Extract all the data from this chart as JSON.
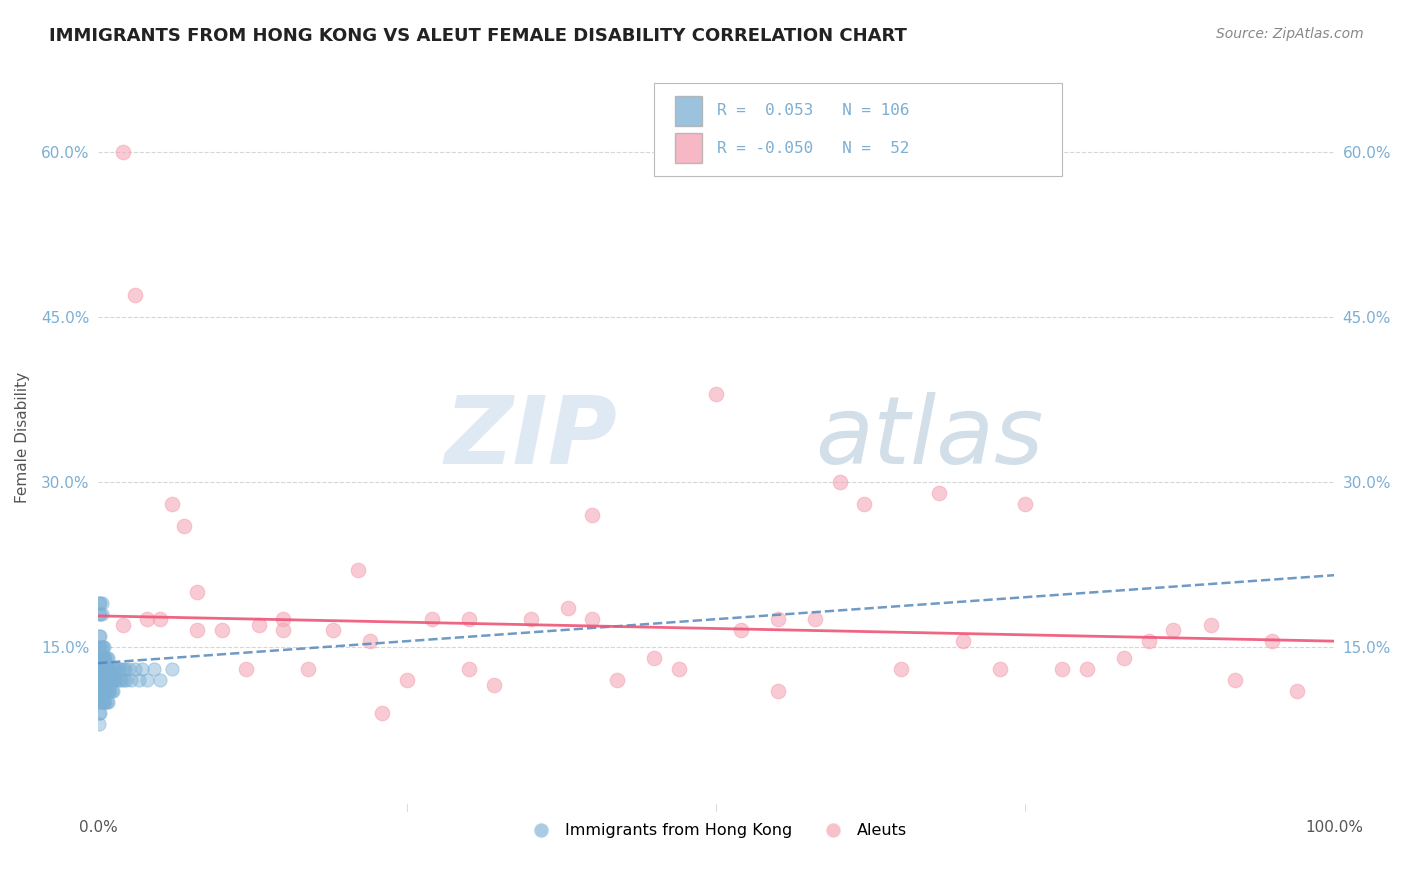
{
  "title": "IMMIGRANTS FROM HONG KONG VS ALEUT FEMALE DISABILITY CORRELATION CHART",
  "source": "Source: ZipAtlas.com",
  "ylabel": "Female Disability",
  "xlim": [
    0.0,
    1.0
  ],
  "ylim": [
    0.0,
    0.68
  ],
  "y_tick_labels": [
    "15.0%",
    "30.0%",
    "45.0%",
    "60.0%"
  ],
  "y_tick_values": [
    0.15,
    0.3,
    0.45,
    0.6
  ],
  "grid_color": "#cccccc",
  "background_color": "#ffffff",
  "blue_R": 0.053,
  "blue_N": 106,
  "pink_R": -0.05,
  "pink_N": 52,
  "blue_color": "#7bafd4",
  "pink_color": "#f4a0b0",
  "blue_line_color": "#5588bb",
  "pink_line_color": "#ee5577",
  "watermark_zip": "ZIP",
  "watermark_atlas": "atlas",
  "legend_labels": [
    "Immigrants from Hong Kong",
    "Aleuts"
  ],
  "blue_scatter_x": [
    0.001,
    0.001,
    0.001,
    0.001,
    0.001,
    0.001,
    0.001,
    0.001,
    0.001,
    0.001,
    0.002,
    0.002,
    0.002,
    0.002,
    0.002,
    0.002,
    0.002,
    0.002,
    0.002,
    0.002,
    0.003,
    0.003,
    0.003,
    0.003,
    0.003,
    0.003,
    0.003,
    0.003,
    0.003,
    0.003,
    0.004,
    0.004,
    0.004,
    0.004,
    0.004,
    0.004,
    0.004,
    0.004,
    0.004,
    0.004,
    0.005,
    0.005,
    0.005,
    0.005,
    0.005,
    0.005,
    0.005,
    0.005,
    0.005,
    0.005,
    0.006,
    0.006,
    0.006,
    0.006,
    0.006,
    0.006,
    0.006,
    0.007,
    0.007,
    0.007,
    0.007,
    0.007,
    0.007,
    0.007,
    0.008,
    0.008,
    0.008,
    0.008,
    0.008,
    0.009,
    0.009,
    0.009,
    0.01,
    0.01,
    0.01,
    0.011,
    0.011,
    0.012,
    0.012,
    0.013,
    0.013,
    0.014,
    0.015,
    0.016,
    0.017,
    0.018,
    0.019,
    0.02,
    0.021,
    0.022,
    0.023,
    0.025,
    0.027,
    0.03,
    0.033,
    0.036,
    0.04,
    0.045,
    0.05,
    0.06,
    0.001,
    0.001,
    0.002,
    0.002,
    0.003,
    0.003
  ],
  "blue_scatter_y": [
    0.1,
    0.11,
    0.12,
    0.13,
    0.14,
    0.15,
    0.16,
    0.09,
    0.08,
    0.13,
    0.11,
    0.12,
    0.13,
    0.14,
    0.1,
    0.09,
    0.15,
    0.16,
    0.12,
    0.11,
    0.12,
    0.13,
    0.14,
    0.1,
    0.11,
    0.15,
    0.13,
    0.12,
    0.14,
    0.11,
    0.13,
    0.12,
    0.14,
    0.11,
    0.1,
    0.15,
    0.13,
    0.12,
    0.14,
    0.11,
    0.12,
    0.13,
    0.14,
    0.1,
    0.11,
    0.15,
    0.13,
    0.12,
    0.14,
    0.11,
    0.13,
    0.12,
    0.14,
    0.11,
    0.1,
    0.12,
    0.13,
    0.12,
    0.13,
    0.14,
    0.11,
    0.1,
    0.12,
    0.13,
    0.12,
    0.13,
    0.14,
    0.11,
    0.1,
    0.12,
    0.13,
    0.11,
    0.12,
    0.13,
    0.11,
    0.12,
    0.11,
    0.12,
    0.11,
    0.13,
    0.12,
    0.13,
    0.12,
    0.13,
    0.12,
    0.13,
    0.12,
    0.13,
    0.12,
    0.13,
    0.12,
    0.13,
    0.12,
    0.13,
    0.12,
    0.13,
    0.12,
    0.13,
    0.12,
    0.13,
    0.19,
    0.18,
    0.19,
    0.18,
    0.18,
    0.19
  ],
  "pink_scatter_x": [
    0.02,
    0.03,
    0.04,
    0.06,
    0.07,
    0.08,
    0.1,
    0.12,
    0.13,
    0.15,
    0.17,
    0.19,
    0.21,
    0.23,
    0.25,
    0.27,
    0.3,
    0.32,
    0.35,
    0.38,
    0.4,
    0.42,
    0.45,
    0.47,
    0.5,
    0.52,
    0.55,
    0.58,
    0.6,
    0.62,
    0.65,
    0.68,
    0.7,
    0.73,
    0.75,
    0.78,
    0.8,
    0.83,
    0.85,
    0.87,
    0.9,
    0.92,
    0.95,
    0.97,
    0.02,
    0.05,
    0.08,
    0.15,
    0.22,
    0.3,
    0.4,
    0.55
  ],
  "pink_scatter_y": [
    0.6,
    0.47,
    0.175,
    0.28,
    0.26,
    0.2,
    0.165,
    0.13,
    0.17,
    0.175,
    0.13,
    0.165,
    0.22,
    0.09,
    0.12,
    0.175,
    0.13,
    0.115,
    0.175,
    0.185,
    0.27,
    0.12,
    0.14,
    0.13,
    0.38,
    0.165,
    0.11,
    0.175,
    0.3,
    0.28,
    0.13,
    0.29,
    0.155,
    0.13,
    0.28,
    0.13,
    0.13,
    0.14,
    0.155,
    0.165,
    0.17,
    0.12,
    0.155,
    0.11,
    0.17,
    0.175,
    0.165,
    0.165,
    0.155,
    0.175,
    0.175,
    0.175
  ],
  "blue_trend_start_y": 0.135,
  "blue_trend_end_y": 0.215,
  "pink_trend_start_y": 0.178,
  "pink_trend_end_y": 0.155
}
